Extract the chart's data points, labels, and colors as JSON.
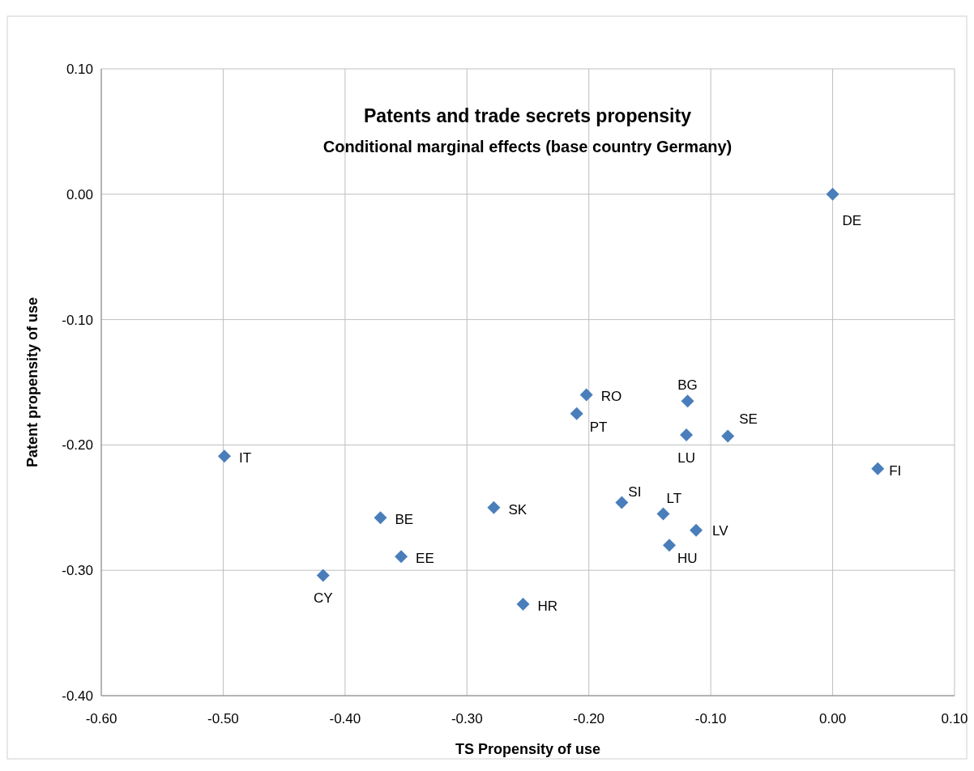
{
  "chart_data": {
    "type": "scatter",
    "title": "Patents and trade secrets propensity",
    "subtitle": "Conditional marginal effects (base country Germany)",
    "xlabel": "TS Propensity of use",
    "ylabel": "Patent propensity of use",
    "series": [
      {
        "color": "#4a7ebb",
        "x": [
          0,
          0.037,
          -0.499,
          -0.371,
          -0.354,
          -0.418,
          -0.278,
          -0.254,
          -0.202,
          -0.21,
          -0.119,
          -0.12,
          -0.086,
          -0.173,
          -0.139,
          -0.112,
          -0.134
        ],
        "values": [
          0,
          -0.219,
          -0.209,
          -0.258,
          -0.289,
          -0.304,
          -0.25,
          -0.327,
          -0.16,
          -0.175,
          -0.165,
          -0.192,
          -0.193,
          -0.246,
          -0.255,
          -0.268,
          -0.28
        ]
      }
    ],
    "annotations": [
      {
        "text": "DE",
        "x": 0,
        "y": 0
      },
      {
        "text": "FI",
        "x": 0.037,
        "y": -0.219
      },
      {
        "text": "IT",
        "x": -0.499,
        "y": -0.209
      },
      {
        "text": "BE",
        "x": -0.371,
        "y": -0.258
      },
      {
        "text": "EE",
        "x": -0.354,
        "y": -0.289
      },
      {
        "text": "CY",
        "x": -0.418,
        "y": -0.304
      },
      {
        "text": "SK",
        "x": -0.278,
        "y": -0.25
      },
      {
        "text": "HR",
        "x": -0.254,
        "y": -0.327
      },
      {
        "text": "RO",
        "x": -0.202,
        "y": -0.16
      },
      {
        "text": "PT",
        "x": -0.21,
        "y": -0.175
      },
      {
        "text": "BG",
        "x": -0.119,
        "y": -0.165
      },
      {
        "text": "LU",
        "x": -0.12,
        "y": -0.192
      },
      {
        "text": "SE",
        "x": -0.086,
        "y": -0.193
      },
      {
        "text": "SI",
        "x": -0.173,
        "y": -0.246
      },
      {
        "text": "LT",
        "x": -0.139,
        "y": -0.255
      },
      {
        "text": "LV",
        "x": -0.112,
        "y": -0.268
      },
      {
        "text": "HU",
        "x": -0.134,
        "y": -0.28
      }
    ],
    "xlim": [
      -0.6,
      0.1
    ],
    "xticks": [
      {
        "value": -0.6,
        "label": "-0.60"
      },
      {
        "value": -0.5,
        "label": "-0.50"
      },
      {
        "value": -0.4,
        "label": "-0.40"
      },
      {
        "value": -0.3,
        "label": "-0.30"
      },
      {
        "value": -0.2,
        "label": "-0.20"
      },
      {
        "value": -0.1,
        "label": "-0.10"
      },
      {
        "value": 0,
        "label": "0.00"
      },
      {
        "value": 0.1,
        "label": "0.10"
      }
    ],
    "ylim": [
      -0.4,
      0.1
    ],
    "yticks": [
      {
        "value": -0.4,
        "label": "-0.40"
      },
      {
        "value": -0.3,
        "label": "-0.30"
      },
      {
        "value": -0.2,
        "label": "-0.20"
      },
      {
        "value": -0.1,
        "label": "-0.10"
      },
      {
        "value": 0,
        "label": "0.00"
      },
      {
        "value": 0.1,
        "label": "0.10"
      }
    ],
    "grid": true,
    "marker": "diamond"
  }
}
